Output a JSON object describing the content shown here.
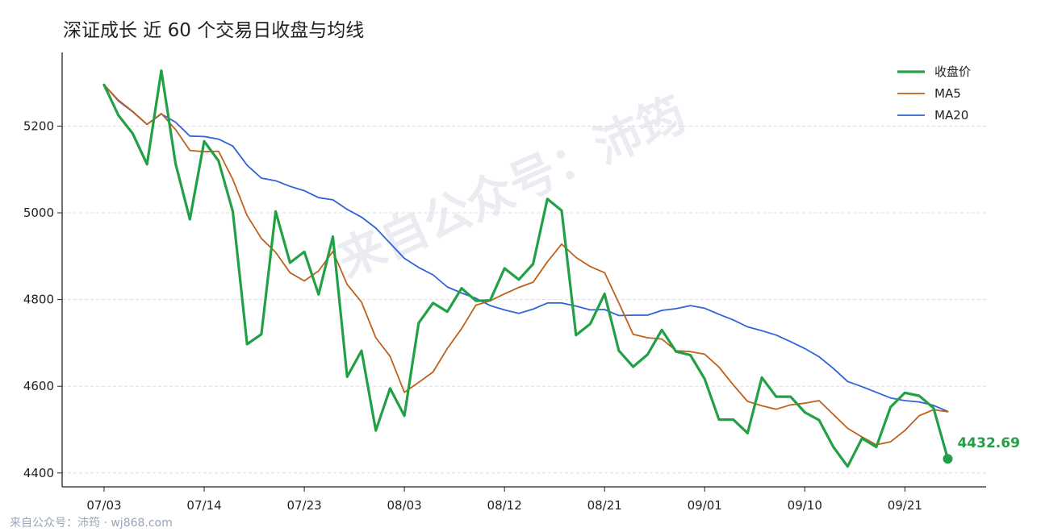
{
  "title": "深证成长 近 60 个交易日收盘与均线",
  "footer": "来自公众号：沛筠 · wj868.com",
  "watermark": "来自公众号：沛筠",
  "colors": {
    "close": "#22a045",
    "ma5": "#c0601a",
    "ma20": "#2f63d8",
    "axis": "#222222",
    "grid": "#dddddd"
  },
  "chart_data": {
    "type": "line",
    "title": "深证成长 近 60 个交易日收盘与均线",
    "xlabel": "",
    "ylabel": "",
    "x_tick_labels": [
      "07/03",
      "07/14",
      "07/23",
      "08/03",
      "08/12",
      "08/21",
      "09/01",
      "09/10",
      "09/21"
    ],
    "x_tick_indices": [
      0,
      7,
      14,
      21,
      28,
      35,
      42,
      49,
      56
    ],
    "y_ticks": [
      4400,
      4600,
      4800,
      5000,
      5200
    ],
    "ylim": [
      4368,
      5370
    ],
    "grid": "horizontal dashed",
    "legend_position": "top-right",
    "last_value_label": "4432.69",
    "series": [
      {
        "name": "收盘价",
        "values": [
          5295,
          5225,
          5183,
          5112,
          5328,
          5113,
          4985,
          5165,
          5120,
          5003,
          4697,
          4720,
          5003,
          4885,
          4910,
          4812,
          4945,
          4622,
          4682,
          4498,
          4595,
          4532,
          4746,
          4792,
          4772,
          4826,
          4797,
          4798,
          4872,
          4846,
          4882,
          5032,
          5005,
          4718,
          4744,
          4813,
          4682,
          4645,
          4673,
          4730,
          4680,
          4672,
          4617,
          4523,
          4523,
          4492,
          4620,
          4576,
          4576,
          4540,
          4522,
          4460,
          4415,
          4480,
          4460,
          4552,
          4585,
          4578,
          4550,
          4432.69
        ]
      },
      {
        "name": "MA5",
        "values": [
          5295,
          5260,
          5234,
          5204,
          5229,
          5192,
          5144,
          5141,
          5142,
          5077,
          4994,
          4941,
          4909,
          4862,
          4843,
          4866,
          4911,
          4835,
          4794,
          4712,
          4669,
          4586,
          4609,
          4633,
          4687,
          4733,
          4787,
          4797,
          4813,
          4828,
          4840,
          4887,
          4928,
          4897,
          4876,
          4862,
          4792,
          4720,
          4712,
          4709,
          4682,
          4680,
          4674,
          4644,
          4603,
          4565,
          4555,
          4547,
          4557,
          4561,
          4567,
          4535,
          4503,
          4483,
          4465,
          4472,
          4498,
          4532,
          4546,
          4541
        ]
      },
      {
        "name": "MA20",
        "values": [
          5295,
          5258,
          5233,
          5204,
          5228,
          5209,
          5177,
          5176,
          5170,
          5154,
          5110,
          5080,
          5074,
          5061,
          5051,
          5035,
          5030,
          5008,
          4990,
          4965,
          4930,
          4895,
          4874,
          4857,
          4829,
          4815,
          4803,
          4786,
          4776,
          4768,
          4778,
          4792,
          4792,
          4785,
          4776,
          4777,
          4763,
          4764,
          4764,
          4775,
          4779,
          4786,
          4780,
          4766,
          4753,
          4737,
          4728,
          4718,
          4703,
          4687,
          4668,
          4641,
          4611,
          4599,
          4586,
          4573,
          4567,
          4564,
          4556,
          4542
        ]
      }
    ]
  }
}
